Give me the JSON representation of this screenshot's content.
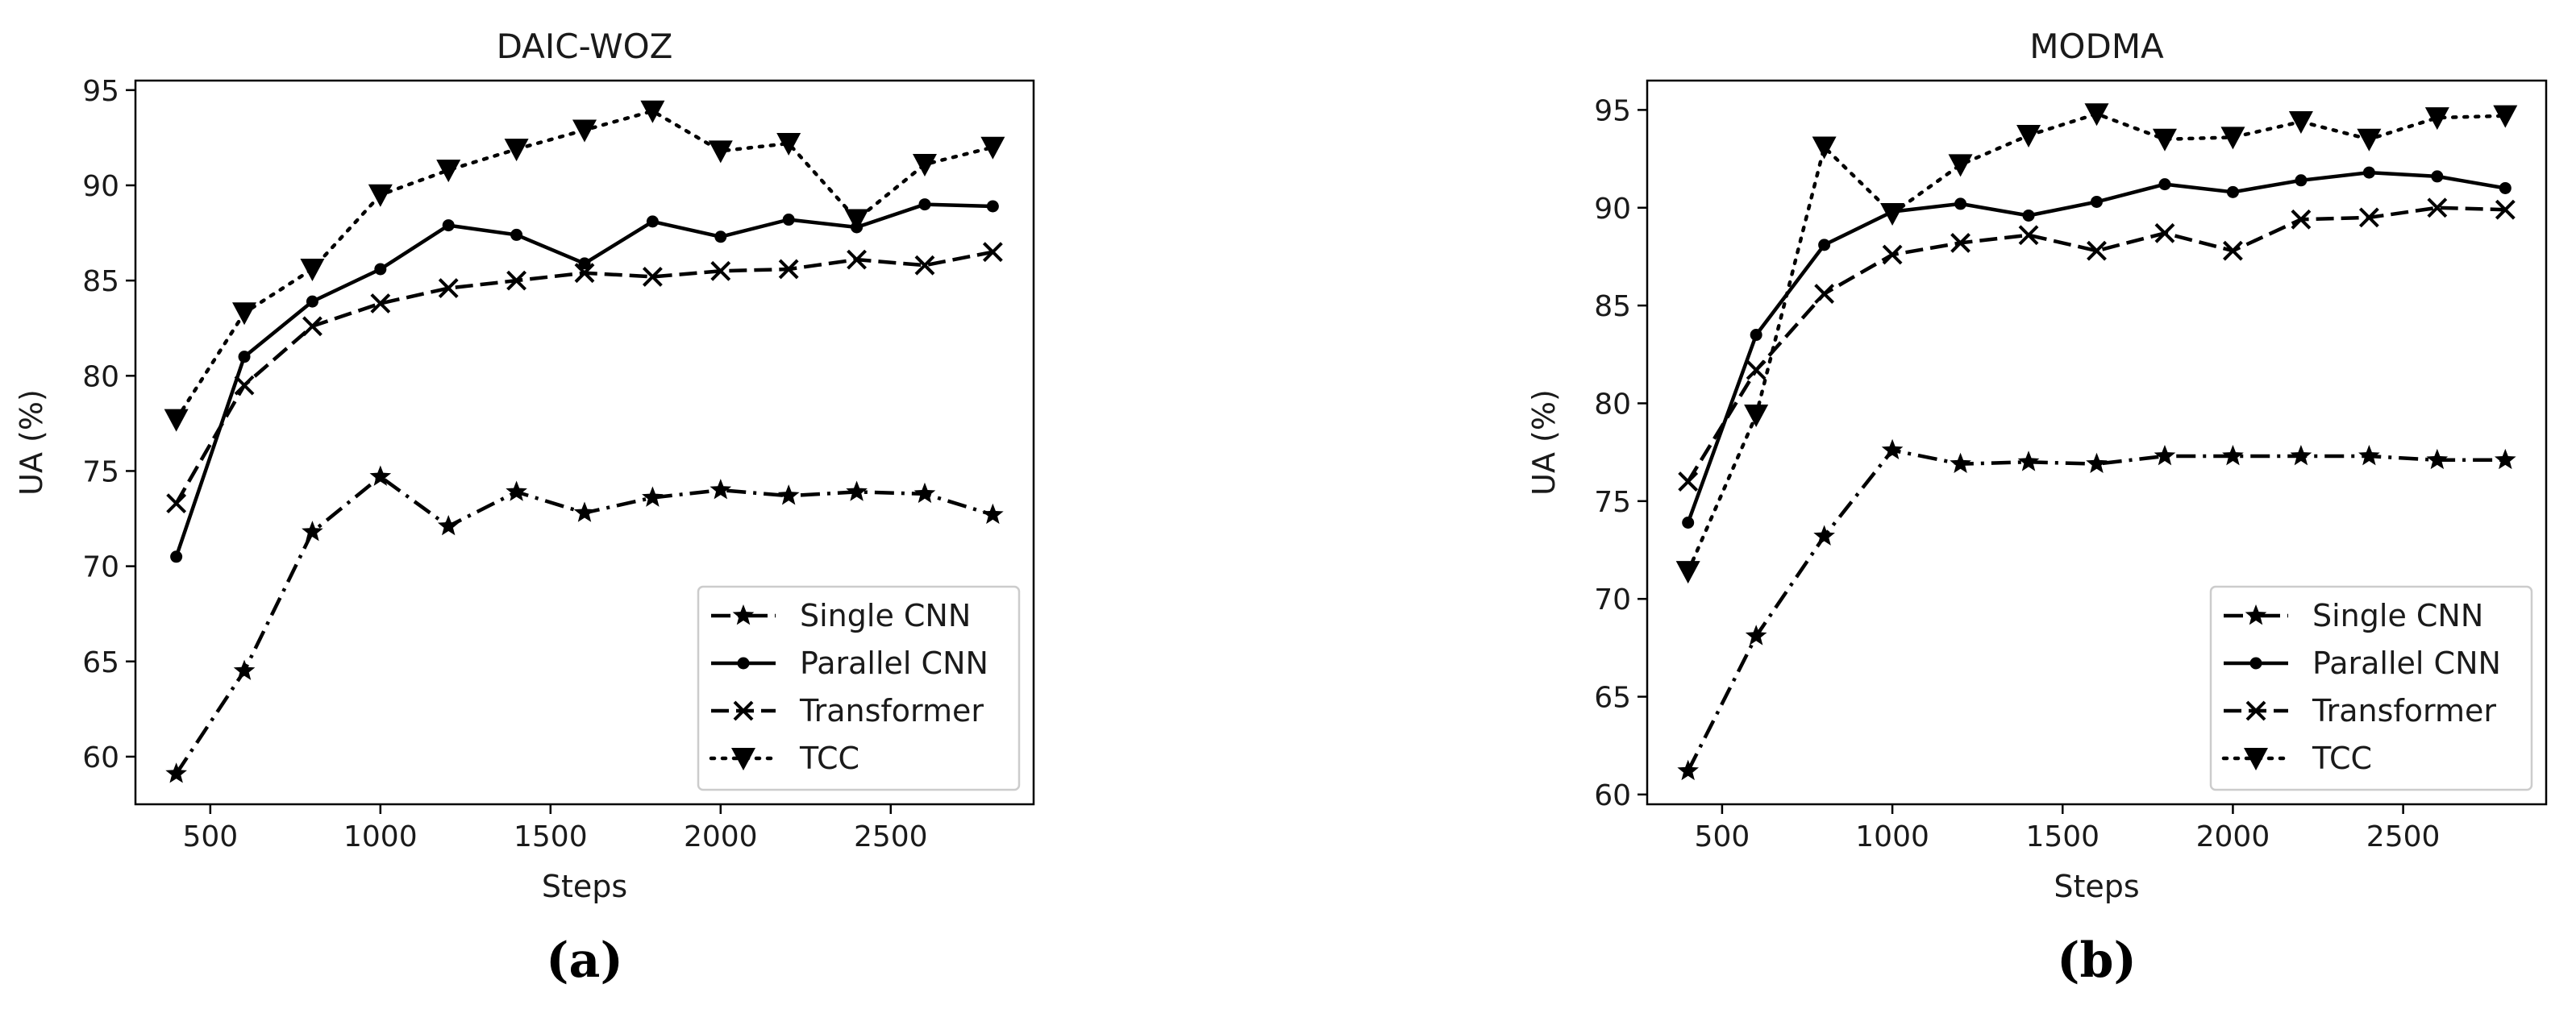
{
  "chart_data": [
    {
      "type": "line",
      "title": "DAIC-WOZ",
      "xlabel": "Steps",
      "ylabel": "UA (%)",
      "panel_label": "(a)",
      "xlim": [
        280,
        2920
      ],
      "ylim": [
        57.5,
        95.5
      ],
      "xticks": [
        500,
        1000,
        1500,
        2000,
        2500
      ],
      "yticks": [
        60,
        65,
        70,
        75,
        80,
        85,
        90,
        95
      ],
      "x": [
        400,
        600,
        800,
        1000,
        1200,
        1400,
        1600,
        1800,
        2000,
        2200,
        2400,
        2600,
        2800
      ],
      "legend_position": "lower-right",
      "series": [
        {
          "name": "Single CNN",
          "style": "dashdot",
          "marker": "star",
          "values": [
            59.1,
            64.5,
            71.8,
            74.7,
            72.1,
            73.9,
            72.8,
            73.6,
            74.0,
            73.7,
            73.9,
            73.8,
            72.7
          ]
        },
        {
          "name": "Parallel CNN",
          "style": "solid",
          "marker": "dot",
          "values": [
            70.5,
            81.0,
            83.9,
            85.6,
            87.9,
            87.4,
            85.9,
            88.1,
            87.3,
            88.2,
            87.8,
            89.0,
            88.9
          ]
        },
        {
          "name": "Transformer",
          "style": "dashed",
          "marker": "x",
          "values": [
            73.3,
            79.5,
            82.6,
            83.8,
            84.6,
            85.0,
            85.4,
            85.2,
            85.5,
            85.6,
            86.1,
            85.8,
            86.5
          ]
        },
        {
          "name": "TCC",
          "style": "dotted",
          "marker": "triangle-down",
          "values": [
            77.7,
            83.3,
            85.6,
            89.5,
            90.8,
            91.9,
            92.9,
            93.9,
            91.8,
            92.2,
            88.2,
            91.1,
            92.0
          ]
        }
      ]
    },
    {
      "type": "line",
      "title": "MODMA",
      "xlabel": "Steps",
      "ylabel": "UA (%)",
      "panel_label": "(b)",
      "xlim": [
        280,
        2920
      ],
      "ylim": [
        59.5,
        96.5
      ],
      "xticks": [
        500,
        1000,
        1500,
        2000,
        2500
      ],
      "yticks": [
        60,
        65,
        70,
        75,
        80,
        85,
        90,
        95
      ],
      "x": [
        400,
        600,
        800,
        1000,
        1200,
        1400,
        1600,
        1800,
        2000,
        2200,
        2400,
        2600,
        2800
      ],
      "legend_position": "lower-right",
      "series": [
        {
          "name": "Single CNN",
          "style": "dashdot",
          "marker": "star",
          "values": [
            61.2,
            68.1,
            73.2,
            77.6,
            76.9,
            77.0,
            76.9,
            77.3,
            77.3,
            77.3,
            77.3,
            77.1,
            77.1
          ]
        },
        {
          "name": "Parallel CNN",
          "style": "solid",
          "marker": "dot",
          "values": [
            73.9,
            83.5,
            88.1,
            89.8,
            90.2,
            89.6,
            90.3,
            91.2,
            90.8,
            91.4,
            91.8,
            91.6,
            91.0
          ]
        },
        {
          "name": "Transformer",
          "style": "dashed",
          "marker": "x",
          "values": [
            76.0,
            81.7,
            85.6,
            87.6,
            88.2,
            88.6,
            87.8,
            88.7,
            87.8,
            89.4,
            89.5,
            90.0,
            89.9
          ]
        },
        {
          "name": "TCC",
          "style": "dotted",
          "marker": "triangle-down",
          "values": [
            71.4,
            79.4,
            93.1,
            89.7,
            92.2,
            93.7,
            94.8,
            93.5,
            93.6,
            94.4,
            93.5,
            94.6,
            94.7
          ]
        }
      ]
    }
  ]
}
